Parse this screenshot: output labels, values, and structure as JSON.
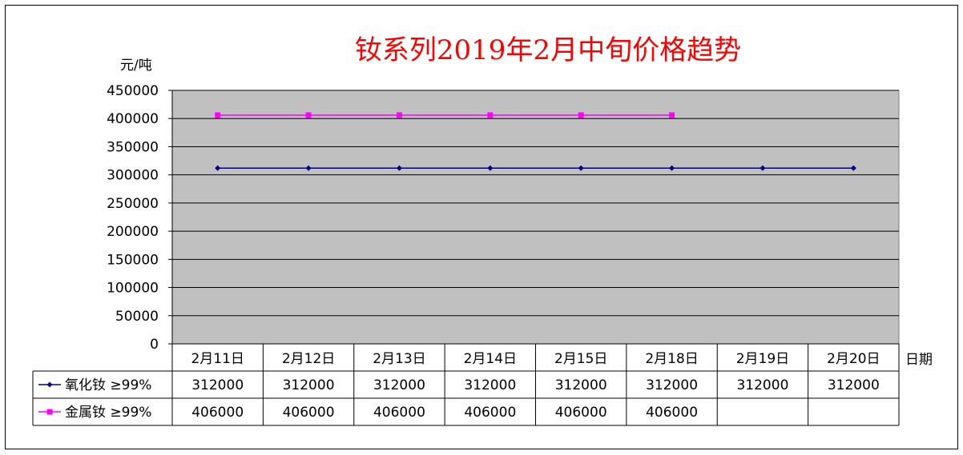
{
  "chart_data": {
    "type": "line",
    "title": "钕系列2019年2月中旬价格趋势",
    "ylabel": "元/吨",
    "xlabel": "日期",
    "ylim": [
      0,
      450000
    ],
    "yticks": [
      "450000",
      "400000",
      "350000",
      "300000",
      "250000",
      "200000",
      "150000",
      "100000",
      "50000",
      "0"
    ],
    "categories": [
      "2月11日",
      "2月12日",
      "2月13日",
      "2月14日",
      "2月15日",
      "2月18日",
      "2月19日",
      "2月20日"
    ],
    "grid": true,
    "legend": "data-table",
    "plot_background": "#c0c0c0",
    "series": [
      {
        "name": "氧化钕 ≥99%",
        "color": "#000080",
        "marker": "diamond",
        "values": [
          312000,
          312000,
          312000,
          312000,
          312000,
          312000,
          312000,
          312000
        ],
        "labels": [
          "312000",
          "312000",
          "312000",
          "312000",
          "312000",
          "312000",
          "312000",
          "312000"
        ]
      },
      {
        "name": "金属钕 ≥99%",
        "color": "#ff00ff",
        "marker": "square",
        "values": [
          406000,
          406000,
          406000,
          406000,
          406000,
          406000,
          null,
          null
        ],
        "labels": [
          "406000",
          "406000",
          "406000",
          "406000",
          "406000",
          "406000",
          "",
          ""
        ]
      }
    ]
  }
}
